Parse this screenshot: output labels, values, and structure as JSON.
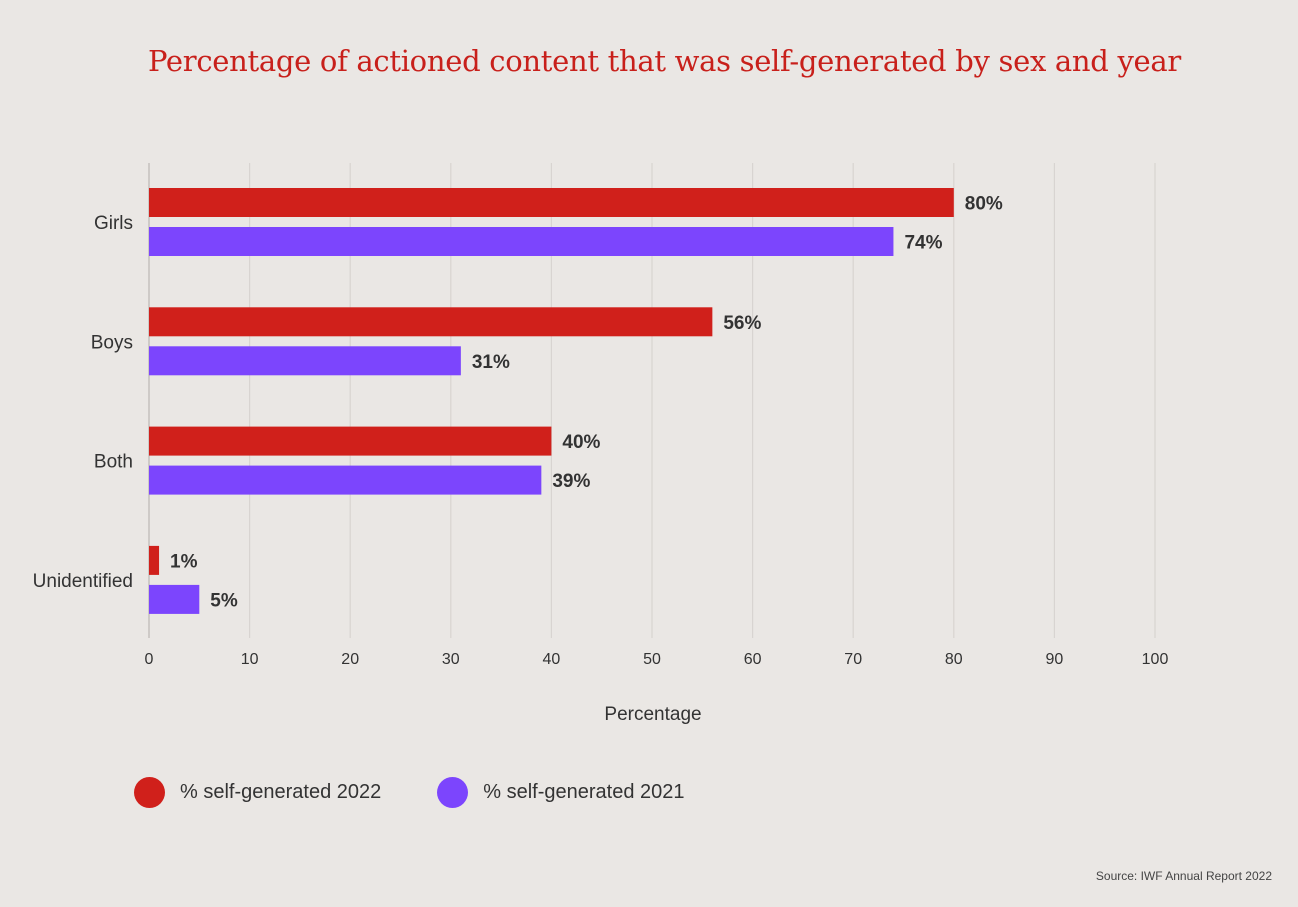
{
  "chart_data": {
    "type": "bar",
    "orientation": "horizontal",
    "title": "Percentage of actioned content that was self-generated by sex and year",
    "categories": [
      "Girls",
      "Boys",
      "Both",
      "Unidentified"
    ],
    "series": [
      {
        "name": "% self-generated 2022",
        "color": "#d0201b",
        "values": [
          80,
          56,
          40,
          1
        ],
        "labels": [
          "80%",
          "56%",
          "40%",
          "1%"
        ]
      },
      {
        "name": "% self-generated 2021",
        "color": "#7c45fd",
        "values": [
          74,
          31,
          39,
          5
        ],
        "labels": [
          "74%",
          "31%",
          "39%",
          "5%"
        ]
      }
    ],
    "xlabel": "Percentage",
    "ylabel": "",
    "xlim": [
      0,
      100
    ],
    "xticks": [
      0,
      10,
      20,
      30,
      40,
      50,
      60,
      70,
      80,
      90,
      100
    ],
    "grid": true,
    "legend_position": "bottom-left"
  },
  "source": "Source: IWF Annual Report 2022"
}
